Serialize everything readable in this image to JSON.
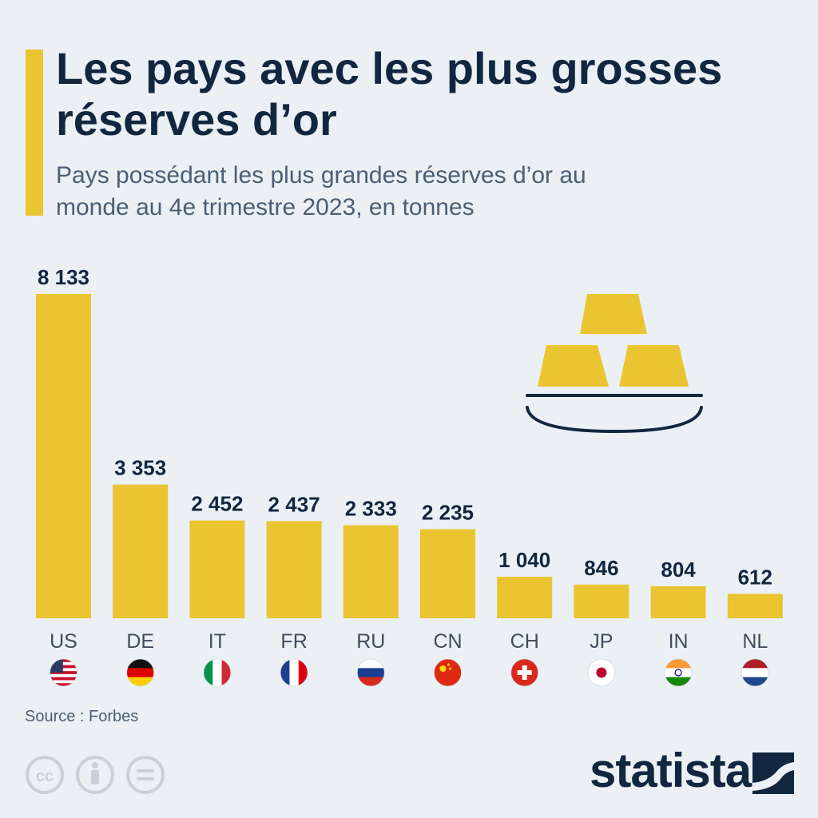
{
  "header": {
    "title": "Les pays avec les plus grosses réserves d’or",
    "subtitle": "Pays possédant les plus grandes réserves d’or au monde au 4e trimestre 2023, en tonnes"
  },
  "chart_data": {
    "type": "bar",
    "categories": [
      "US",
      "DE",
      "IT",
      "FR",
      "RU",
      "CN",
      "CH",
      "JP",
      "IN",
      "NL"
    ],
    "values": [
      8133,
      3353,
      2452,
      2437,
      2333,
      2235,
      1040,
      846,
      804,
      612
    ],
    "value_labels": [
      "8 133",
      "3 353",
      "2 452",
      "2 437",
      "2 333",
      "2 235",
      "1 040",
      "846",
      "804",
      "612"
    ],
    "flags": [
      "us-flag-icon",
      "de-flag-icon",
      "it-flag-icon",
      "fr-flag-icon",
      "ru-flag-icon",
      "cn-flag-icon",
      "ch-flag-icon",
      "jp-flag-icon",
      "in-flag-icon",
      "nl-flag-icon"
    ],
    "ylim": [
      0,
      8133
    ],
    "grid": false,
    "bar_color": "#ebc431"
  },
  "footer": {
    "source": "Source : Forbes",
    "brand": "statista",
    "license_icons": [
      "cc-icon",
      "attribution-icon",
      "no-derivatives-icon"
    ]
  },
  "colors": {
    "background": "#ebf0f5",
    "accent": "#ebc431",
    "text": "#12263f",
    "subtext": "#4a5f73"
  }
}
